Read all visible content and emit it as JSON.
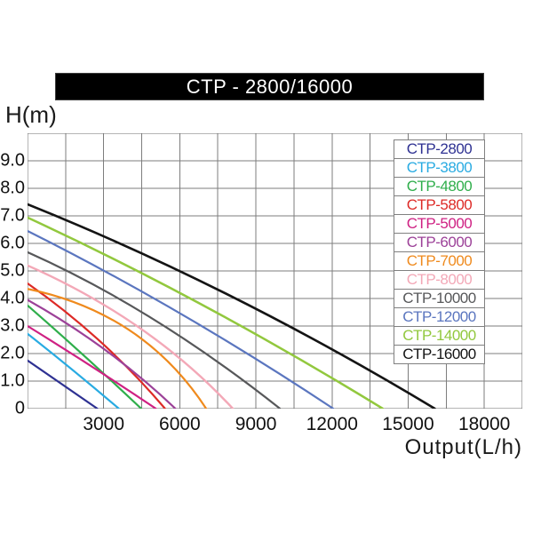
{
  "title_bar": {
    "text": "CTP - 2800/16000"
  },
  "axes": {
    "y_label": "H(m)",
    "x_label": "Output(L/h)"
  },
  "legend": {
    "items": [
      {
        "label": "CTP-2800",
        "color": "#2e3192"
      },
      {
        "label": "CTP-3800",
        "color": "#29abe2"
      },
      {
        "label": "CTP-4800",
        "color": "#2fae4b"
      },
      {
        "label": "CTP-5800",
        "color": "#dd2a26"
      },
      {
        "label": "CTP-5000",
        "color": "#cf2183"
      },
      {
        "label": "CTP-6000",
        "color": "#9c4198"
      },
      {
        "label": "CTP-7000",
        "color": "#ef8a1d"
      },
      {
        "label": "CTP-8000",
        "color": "#f3a8b7"
      },
      {
        "label": "CTP-10000",
        "color": "#57585a"
      },
      {
        "label": "CTP-12000",
        "color": "#5b76bf"
      },
      {
        "label": "CTP-14000",
        "color": "#92c83e"
      },
      {
        "label": "CTP-16000",
        "color": "#141414"
      }
    ]
  },
  "chart_data": {
    "type": "line",
    "title": "CTP - 2800/16000",
    "xlabel": "Output(L/h)",
    "ylabel": "H(m)",
    "xlim": [
      0,
      19500
    ],
    "ylim": [
      0,
      10
    ],
    "grid": true,
    "x_grid_step": 1500,
    "y_grid_step": 1,
    "x_tick_values": [
      3000,
      6000,
      9000,
      12000,
      15000,
      18000
    ],
    "x_tick_labels": [
      "3000",
      "6000",
      "9000",
      "12000",
      "15000",
      "18000"
    ],
    "y_tick_values": [
      9,
      8,
      7,
      6,
      5,
      4,
      3,
      2,
      1,
      0
    ],
    "y_tick_labels": [
      "9.0",
      "8.0",
      "7.0",
      "6.0",
      "5.0",
      "4.0",
      "3.0",
      "2.0",
      "1.0",
      "0"
    ],
    "legend_position": "upper right",
    "series": [
      {
        "name": "CTP-2800",
        "color": "#2e3192",
        "max_head_m": 1.75,
        "max_flow_lh": 2750,
        "ctrl": [
          0.5,
          0.5
        ],
        "width": 2.2
      },
      {
        "name": "CTP-3800",
        "color": "#29abe2",
        "max_head_m": 2.72,
        "max_flow_lh": 3600,
        "ctrl": [
          0.5,
          0.52
        ],
        "width": 2.2
      },
      {
        "name": "CTP-4800",
        "color": "#2fae4b",
        "max_head_m": 3.75,
        "max_flow_lh": 4480,
        "ctrl": [
          0.5,
          0.52
        ],
        "width": 2.2
      },
      {
        "name": "CTP-5000",
        "color": "#cf2183",
        "max_head_m": 3.0,
        "max_flow_lh": 5060,
        "ctrl": [
          0.5,
          0.52
        ],
        "width": 2.2
      },
      {
        "name": "CTP-5800",
        "color": "#dd2a26",
        "max_head_m": 4.55,
        "max_flow_lh": 5420,
        "ctrl": [
          0.55,
          0.58
        ],
        "width": 2.2
      },
      {
        "name": "CTP-6000",
        "color": "#9c4198",
        "max_head_m": 3.95,
        "max_flow_lh": 5830,
        "ctrl": [
          0.55,
          0.58
        ],
        "width": 2.2
      },
      {
        "name": "CTP-7000",
        "color": "#ef8a1d",
        "max_head_m": 4.35,
        "max_flow_lh": 7040,
        "ctrl": [
          0.65,
          0.8
        ],
        "width": 2.2
      },
      {
        "name": "CTP-8000",
        "color": "#f3a8b7",
        "max_head_m": 5.2,
        "max_flow_lh": 8090,
        "ctrl": [
          0.6,
          0.62
        ],
        "width": 2.4
      },
      {
        "name": "CTP-10000",
        "color": "#57585a",
        "max_head_m": 5.68,
        "max_flow_lh": 9950,
        "ctrl": [
          0.5,
          0.64
        ],
        "width": 2.2
      },
      {
        "name": "CTP-12000",
        "color": "#5b76bf",
        "max_head_m": 6.45,
        "max_flow_lh": 12050,
        "ctrl": [
          0.5,
          0.57
        ],
        "width": 2.2
      },
      {
        "name": "CTP-14000",
        "color": "#92c83e",
        "max_head_m": 6.94,
        "max_flow_lh": 14000,
        "ctrl": [
          0.5,
          0.57
        ],
        "width": 2.5
      },
      {
        "name": "CTP-16000",
        "color": "#141414",
        "max_head_m": 7.42,
        "max_flow_lh": 16050,
        "ctrl": [
          0.5,
          0.6
        ],
        "width": 2.6
      }
    ]
  }
}
